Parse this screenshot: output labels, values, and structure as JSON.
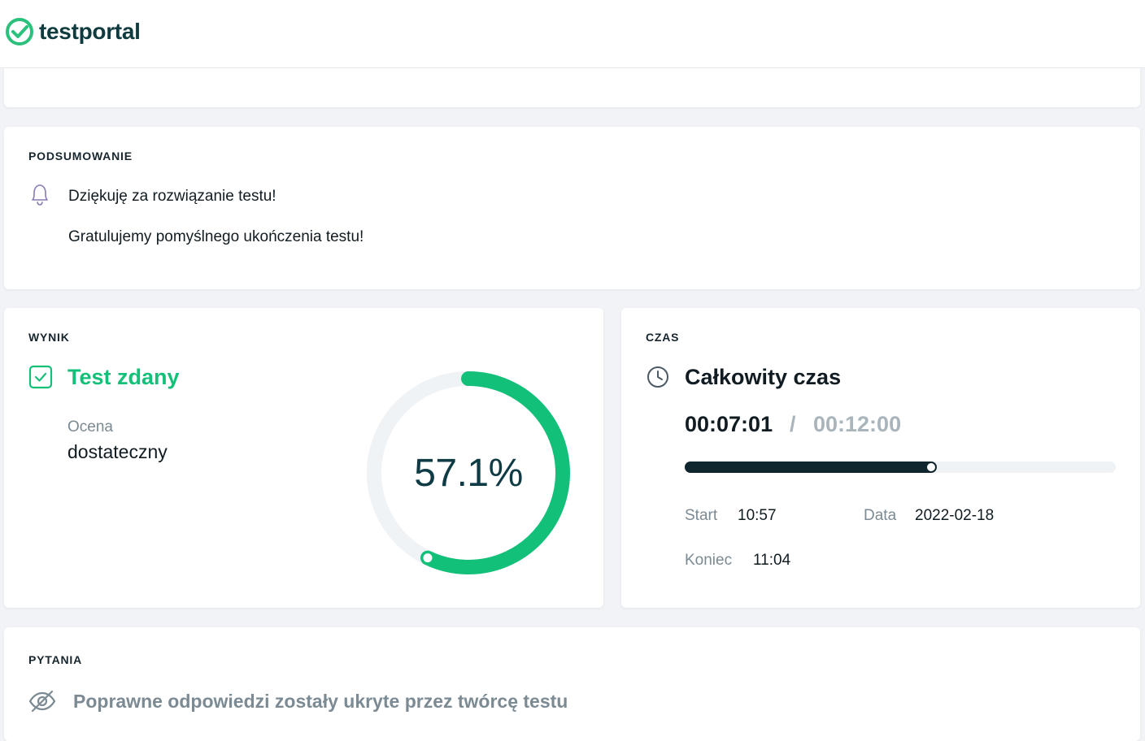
{
  "header": {
    "logo_text": "testportal"
  },
  "summary": {
    "section_title": "PODSUMOWANIE",
    "thanks_text": "Dziękuję za rozwiązanie testu!",
    "congrats_text": "Gratulujemy pomyślnego ukończenia testu!",
    "icon": "bell-icon"
  },
  "result": {
    "section_title": "WYNIK",
    "status_text": "Test zdany",
    "status_icon": "checkbox-checked-icon",
    "grade_label": "Ocena",
    "grade_value": "dostateczny",
    "score_text": "57.1%",
    "score_fraction": 0.571
  },
  "time": {
    "section_title": "CZAS",
    "title": "Całkowity czas",
    "icon": "clock-icon",
    "elapsed": "00:07:01",
    "separator": "/",
    "limit": "00:12:00",
    "progress_fraction": 0.585,
    "start_label": "Start",
    "start_value": "10:57",
    "date_label": "Data",
    "date_value": "2022-02-18",
    "end_label": "Koniec",
    "end_value": "11:04"
  },
  "questions": {
    "section_title": "PYTANIA",
    "note": "Poprawne odpowiedzi zostały ukryte przez twórcę testu",
    "icon": "eye-slash-icon"
  },
  "colors": {
    "accent_green": "#13c07a",
    "dark": "#10262e",
    "muted": "#7b8a93",
    "track": "#f0f3f6",
    "bell_purple": "#8a7bb3"
  }
}
